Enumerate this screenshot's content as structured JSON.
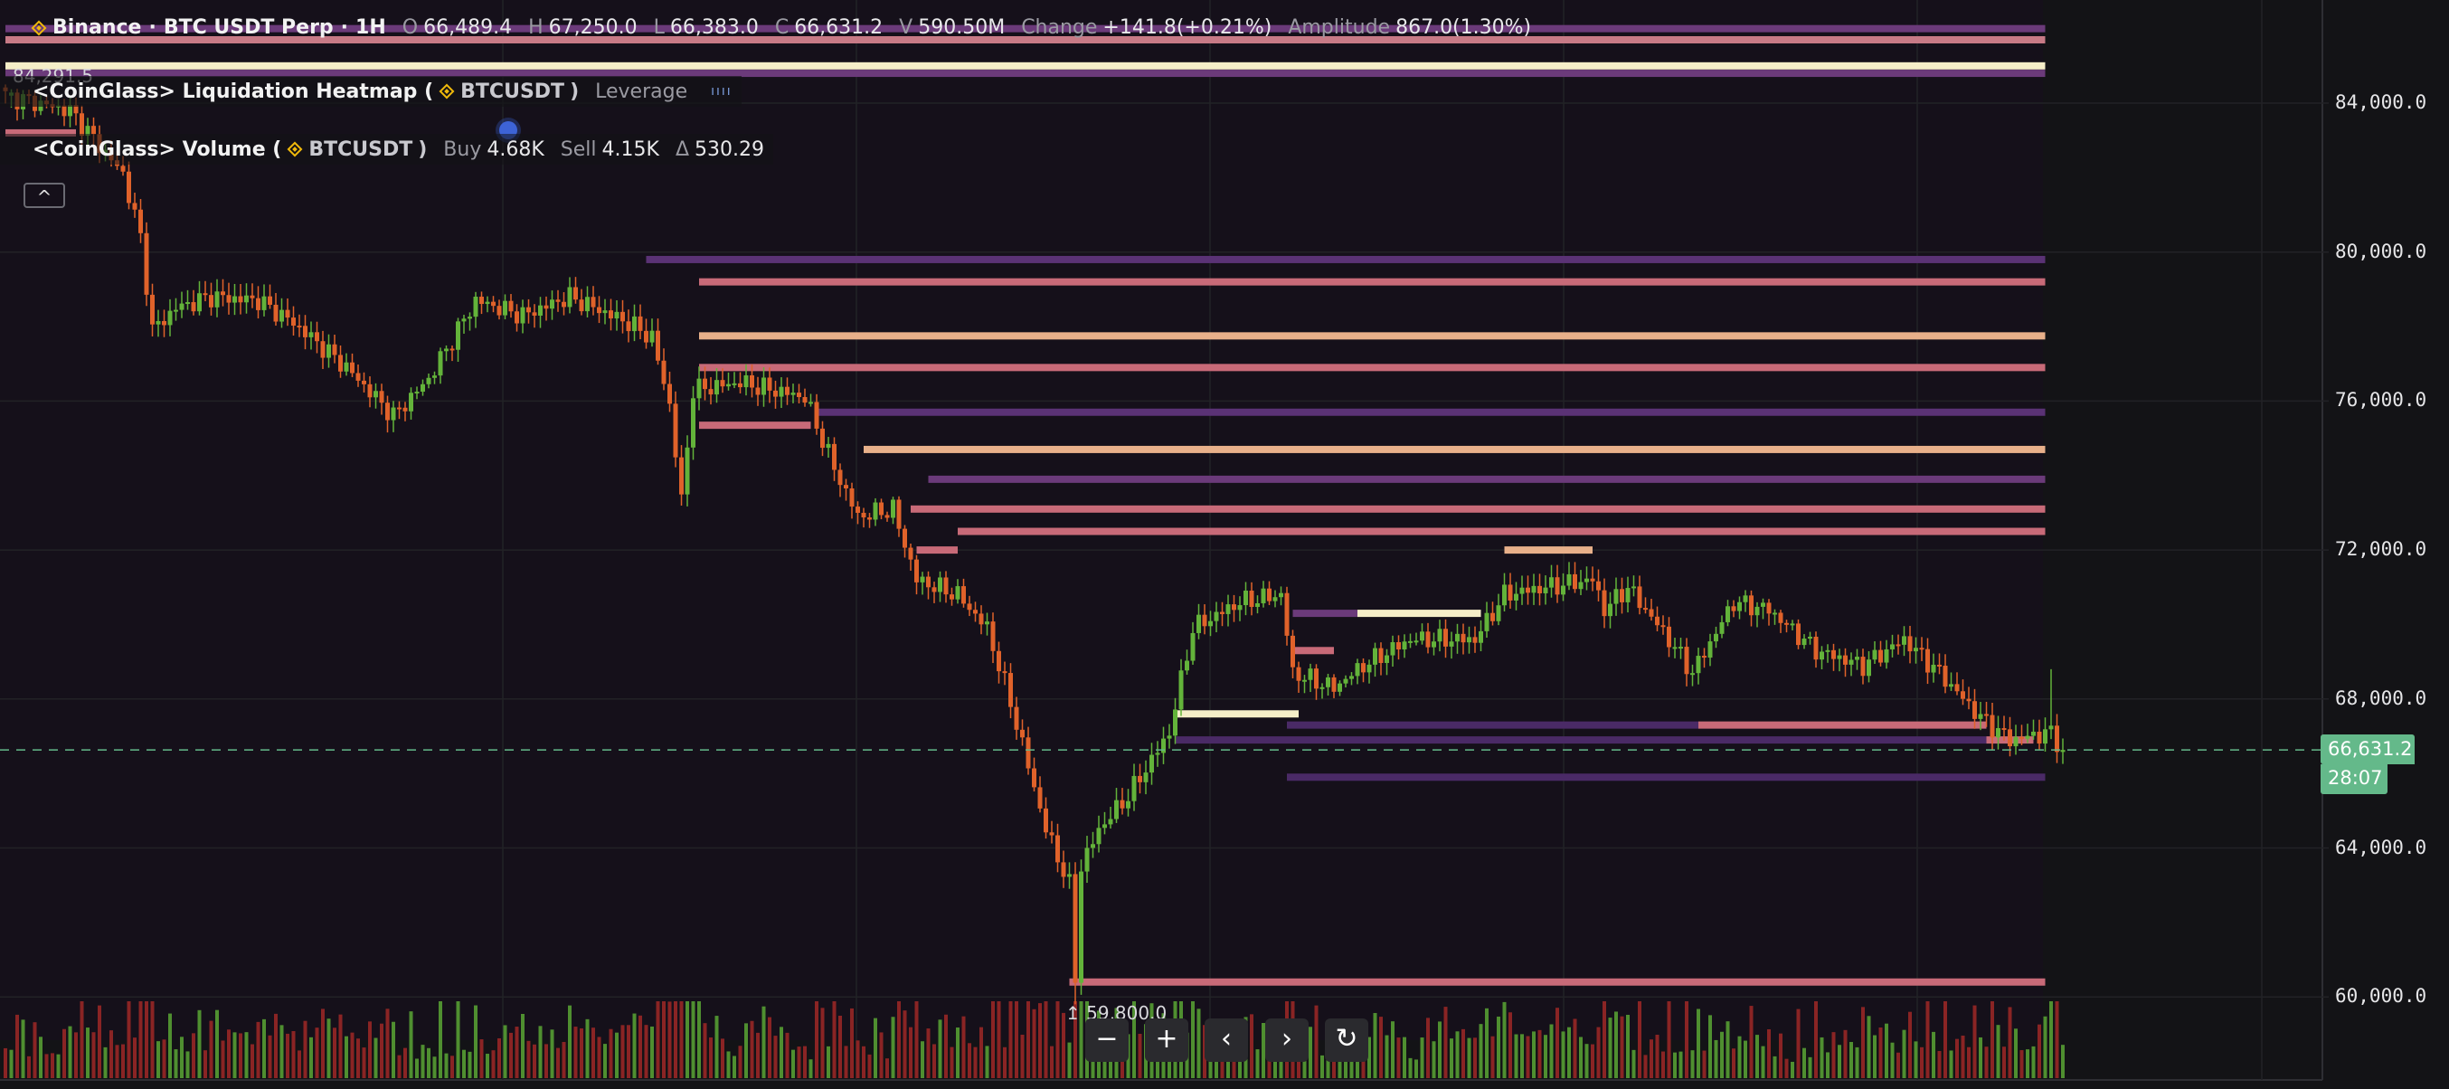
{
  "header": {
    "exchange": "Binance",
    "symbol": "BTC USDT Perp",
    "interval": "1H",
    "separator": "·",
    "open_label": "O",
    "open": "66,489.4",
    "high_label": "H",
    "high": "67,250.0",
    "low_label": "L",
    "low": "66,383.0",
    "close_label": "C",
    "close": "66,631.2",
    "volume_label": "V",
    "volume": "590.50M",
    "change_label": "Change",
    "change": "+141.8(+0.21%)",
    "amplitude_label": "Amplitude",
    "amplitude": "867.0(1.30%)"
  },
  "indicators": {
    "heatmap": {
      "title": "<CoinGlass> Liquidation Heatmap (",
      "symbol": "BTCUSDT",
      "close_paren": ")",
      "leverage_label": "Leverage"
    },
    "volume": {
      "title": "<CoinGlass> Volume (",
      "symbol": "BTCUSDT",
      "close_paren": ")",
      "buy_label": "Buy",
      "buy": "4.68K",
      "sell_label": "Sell",
      "sell": "4.15K",
      "delta_label": "Δ",
      "delta": "530.29"
    },
    "collapse_icon": "chevron-up-icon"
  },
  "markers": {
    "high_marker": "84,291.5",
    "low_marker": "59,800.0"
  },
  "controls": [
    {
      "name": "zoom-out",
      "icon": "minus-icon",
      "glyph": "−"
    },
    {
      "name": "zoom-in",
      "icon": "plus-icon",
      "glyph": "+"
    },
    {
      "name": "scroll-left",
      "icon": "chevron-left-icon",
      "glyph": "‹"
    },
    {
      "name": "scroll-right",
      "icon": "chevron-right-icon",
      "glyph": "›"
    },
    {
      "name": "reset",
      "icon": "refresh-icon",
      "glyph": "↻"
    }
  ],
  "price_tag": {
    "price": "66,631.2",
    "countdown": "28:07",
    "color": "#64b98a"
  },
  "chart_data": {
    "type": "candlestick",
    "title": "",
    "y_axis": {
      "ticks": [
        "84,000.0",
        "80,000.0",
        "76,000.0",
        "72,000.0",
        "68,000.0",
        "64,000.0",
        "60,000.0"
      ],
      "tick_values": [
        84000,
        80000,
        76000,
        72000,
        68000,
        64000,
        60000
      ],
      "ylim": [
        58200,
        85200
      ],
      "position": "right"
    },
    "grid": true,
    "colors": {
      "up": "#63b33a",
      "down": "#e0622a",
      "vol_up": "#4f8f30",
      "vol_down": "#8a2424",
      "last_price_line": "#64b98a"
    },
    "candle_count": 351,
    "close_path": [
      {
        "i": 0,
        "p": 84200
      },
      {
        "i": 11,
        "p": 83800
      },
      {
        "i": 20,
        "p": 82100
      },
      {
        "i": 23,
        "p": 80400
      },
      {
        "i": 25,
        "p": 77900
      },
      {
        "i": 29,
        "p": 78500
      },
      {
        "i": 35,
        "p": 78800
      },
      {
        "i": 43,
        "p": 78700
      },
      {
        "i": 49,
        "p": 78100
      },
      {
        "i": 58,
        "p": 76900
      },
      {
        "i": 66,
        "p": 75600
      },
      {
        "i": 72,
        "p": 76600
      },
      {
        "i": 80,
        "p": 78700
      },
      {
        "i": 88,
        "p": 78300
      },
      {
        "i": 96,
        "p": 78800
      },
      {
        "i": 106,
        "p": 78100
      },
      {
        "i": 110,
        "p": 77700
      },
      {
        "i": 113,
        "p": 75900
      },
      {
        "i": 115,
        "p": 73300
      },
      {
        "i": 117,
        "p": 76300
      },
      {
        "i": 125,
        "p": 76500
      },
      {
        "i": 136,
        "p": 76100
      },
      {
        "i": 141,
        "p": 74200
      },
      {
        "i": 145,
        "p": 72900
      },
      {
        "i": 151,
        "p": 73100
      },
      {
        "i": 155,
        "p": 71200
      },
      {
        "i": 162,
        "p": 70800
      },
      {
        "i": 167,
        "p": 69900
      },
      {
        "i": 171,
        "p": 67900
      },
      {
        "i": 174,
        "p": 66200
      },
      {
        "i": 177,
        "p": 64500
      },
      {
        "i": 181,
        "p": 63000
      },
      {
        "i": 182,
        "p": 60500,
        "low": 59800
      },
      {
        "i": 183,
        "p": 63500
      },
      {
        "i": 186,
        "p": 64500
      },
      {
        "i": 191,
        "p": 65400
      },
      {
        "i": 198,
        "p": 67100
      },
      {
        "i": 202,
        "p": 69900
      },
      {
        "i": 210,
        "p": 70600
      },
      {
        "i": 217,
        "p": 70800
      },
      {
        "i": 219,
        "p": 68700
      },
      {
        "i": 226,
        "p": 68300
      },
      {
        "i": 231,
        "p": 68900
      },
      {
        "i": 239,
        "p": 69600
      },
      {
        "i": 250,
        "p": 69600
      },
      {
        "i": 255,
        "p": 70800
      },
      {
        "i": 262,
        "p": 71000
      },
      {
        "i": 270,
        "p": 71200
      },
      {
        "i": 272,
        "p": 70400
      },
      {
        "i": 276,
        "p": 71000
      },
      {
        "i": 283,
        "p": 69600
      },
      {
        "i": 287,
        "p": 68700
      },
      {
        "i": 294,
        "p": 70600
      },
      {
        "i": 300,
        "p": 70400
      },
      {
        "i": 308,
        "p": 69300
      },
      {
        "i": 316,
        "p": 68900
      },
      {
        "i": 323,
        "p": 69600
      },
      {
        "i": 329,
        "p": 68700
      },
      {
        "i": 336,
        "p": 67500
      },
      {
        "i": 341,
        "p": 66900
      },
      {
        "i": 348,
        "p": 67100,
        "high": 68800
      },
      {
        "i": 350,
        "p": 66631.2
      }
    ],
    "last_price": 66631.2,
    "heatmap_bands": [
      {
        "price": 86000,
        "from": 0,
        "to": 347,
        "color": "#6b3a7a"
      },
      {
        "price": 85700,
        "from": 0,
        "to": 347,
        "color": "#c77a86"
      },
      {
        "price": 85000,
        "from": 0,
        "to": 347,
        "color": "#f5eec8"
      },
      {
        "price": 84800,
        "from": 0,
        "to": 347,
        "color": "#6b3a7a"
      },
      {
        "price": 83200,
        "from": 0,
        "to": 12,
        "color": "#c86a78"
      },
      {
        "price": 79800,
        "from": 109,
        "to": 347,
        "color": "#5a3275"
      },
      {
        "price": 79200,
        "from": 118,
        "to": 347,
        "color": "#c86a78"
      },
      {
        "price": 77750,
        "from": 118,
        "to": 347,
        "color": "#e8b08a"
      },
      {
        "price": 76900,
        "from": 118,
        "to": 347,
        "color": "#c86a78"
      },
      {
        "price": 75700,
        "from": 138,
        "to": 347,
        "color": "#5a3275"
      },
      {
        "price": 75350,
        "from": 118,
        "to": 137,
        "color": "#c86a78"
      },
      {
        "price": 74700,
        "from": 146,
        "to": 347,
        "color": "#e8b08a"
      },
      {
        "price": 73900,
        "from": 157,
        "to": 347,
        "color": "#6b3a7a"
      },
      {
        "price": 73100,
        "from": 154,
        "to": 347,
        "color": "#c86a78"
      },
      {
        "price": 72500,
        "from": 162,
        "to": 347,
        "color": "#c86a78"
      },
      {
        "price": 72000,
        "from": 155,
        "to": 162,
        "color": "#c86a78"
      },
      {
        "price": 72000,
        "from": 255,
        "to": 270,
        "color": "#e8b08a"
      },
      {
        "price": 70300,
        "from": 219,
        "to": 230,
        "color": "#6b3a7a"
      },
      {
        "price": 70300,
        "from": 230,
        "to": 251,
        "color": "#f5eec8"
      },
      {
        "price": 69300,
        "from": 219,
        "to": 226,
        "color": "#c86a78"
      },
      {
        "price": 67600,
        "from": 199,
        "to": 220,
        "color": "#f5eec8"
      },
      {
        "price": 67300,
        "from": 218,
        "to": 288,
        "color": "#4a2a66"
      },
      {
        "price": 67300,
        "from": 288,
        "to": 337,
        "color": "#c86a78"
      },
      {
        "price": 66900,
        "from": 199,
        "to": 337,
        "color": "#4a2a66"
      },
      {
        "price": 66900,
        "from": 337,
        "to": 345,
        "color": "#c86a78"
      },
      {
        "price": 65900,
        "from": 218,
        "to": 347,
        "color": "#4a2a66"
      },
      {
        "price": 60400,
        "from": 181,
        "to": 347,
        "color": "#c86a78"
      }
    ]
  }
}
